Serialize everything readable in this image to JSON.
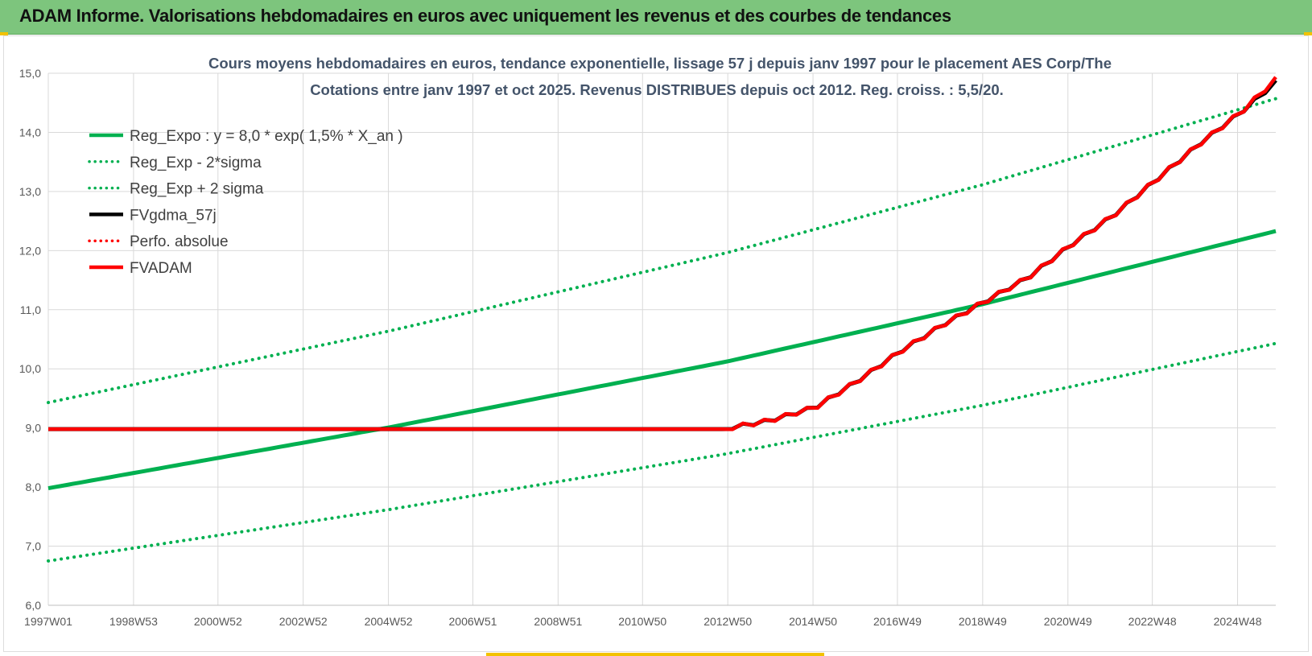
{
  "header": {
    "title": "ADAM Informe. Valorisations hebdomadaires en euros avec uniquement les revenus et des courbes de tendances"
  },
  "colors": {
    "header_band": "#7dc57d",
    "green": "#00b050",
    "red": "#ff0000",
    "black": "#000000",
    "grid": "#d9d9d9"
  },
  "chart_data": {
    "type": "line",
    "title": "Cours moyens hebdomadaires en euros, tendance exponentielle, lissage 57 j depuis janv 1997 pour le placement AES Corp/The",
    "subtitle": "Cotations entre janv 1997 et oct 2025. Revenus DISTRIBUES depuis oct 2012.  Reg. croiss. : 5,5/20.",
    "x_ticks": [
      "1997W01",
      "1998W53",
      "2000W52",
      "2002W52",
      "2004W52",
      "2006W51",
      "2008W51",
      "2010W50",
      "2012W50",
      "2014W50",
      "2016W49",
      "2018W49",
      "2020W49",
      "2022W48",
      "2024W48"
    ],
    "x_range": [
      1997.0,
      2025.8
    ],
    "ylim": [
      6.0,
      15.0
    ],
    "y_ticks": [
      "6,0",
      "7,0",
      "8,0",
      "9,0",
      "10,0",
      "11,0",
      "12,0",
      "13,0",
      "14,0",
      "15,0"
    ],
    "grid": true,
    "legend_position": "top-left",
    "series": [
      {
        "name": "Reg_Expo : y = 8,0 * exp( 1,5% *  X_an )",
        "style": "solid",
        "color": "#00b050",
        "points": [
          [
            1997.0,
            7.98
          ],
          [
            2005.0,
            9.01
          ],
          [
            2012.9,
            10.12
          ],
          [
            2018.9,
            11.09
          ],
          [
            2025.8,
            12.33
          ]
        ]
      },
      {
        "name": "Reg_Exp - 2*sigma",
        "style": "dotted",
        "color": "#00b050",
        "points": [
          [
            1997.0,
            6.75
          ],
          [
            2005.0,
            7.62
          ],
          [
            2012.9,
            8.56
          ],
          [
            2018.9,
            9.38
          ],
          [
            2025.8,
            10.43
          ]
        ]
      },
      {
        "name": "Reg_Exp + 2 sigma",
        "style": "dotted",
        "color": "#00b050",
        "points": [
          [
            1997.0,
            9.43
          ],
          [
            2005.0,
            10.64
          ],
          [
            2012.9,
            11.96
          ],
          [
            2018.9,
            13.11
          ],
          [
            2025.8,
            14.57
          ]
        ]
      },
      {
        "name": "FVgdma_57j",
        "style": "solid",
        "color": "#000000",
        "points": [
          [
            1997.0,
            8.98
          ],
          [
            2012.8,
            8.98
          ],
          [
            2013.9,
            9.12
          ],
          [
            2015.0,
            9.35
          ],
          [
            2016.0,
            9.8
          ],
          [
            2017.0,
            10.3
          ],
          [
            2018.0,
            10.75
          ],
          [
            2019.0,
            11.15
          ],
          [
            2020.0,
            11.55
          ],
          [
            2021.0,
            12.1
          ],
          [
            2022.0,
            12.6
          ],
          [
            2023.0,
            13.2
          ],
          [
            2024.0,
            13.8
          ],
          [
            2025.0,
            14.35
          ],
          [
            2025.8,
            14.85
          ]
        ]
      },
      {
        "name": "Perfo. absolue",
        "style": "dotted",
        "color": "#ff0000",
        "points": []
      },
      {
        "name": "FVADAM",
        "style": "solid",
        "color": "#ff0000",
        "points": [
          [
            1997.0,
            8.98
          ],
          [
            2012.8,
            8.98
          ],
          [
            2013.9,
            9.12
          ],
          [
            2015.0,
            9.35
          ],
          [
            2016.0,
            9.8
          ],
          [
            2017.0,
            10.3
          ],
          [
            2018.0,
            10.75
          ],
          [
            2019.0,
            11.15
          ],
          [
            2020.0,
            11.55
          ],
          [
            2021.0,
            12.1
          ],
          [
            2022.0,
            12.6
          ],
          [
            2023.0,
            13.2
          ],
          [
            2024.0,
            13.8
          ],
          [
            2025.0,
            14.35
          ],
          [
            2025.8,
            14.9
          ]
        ]
      }
    ]
  }
}
